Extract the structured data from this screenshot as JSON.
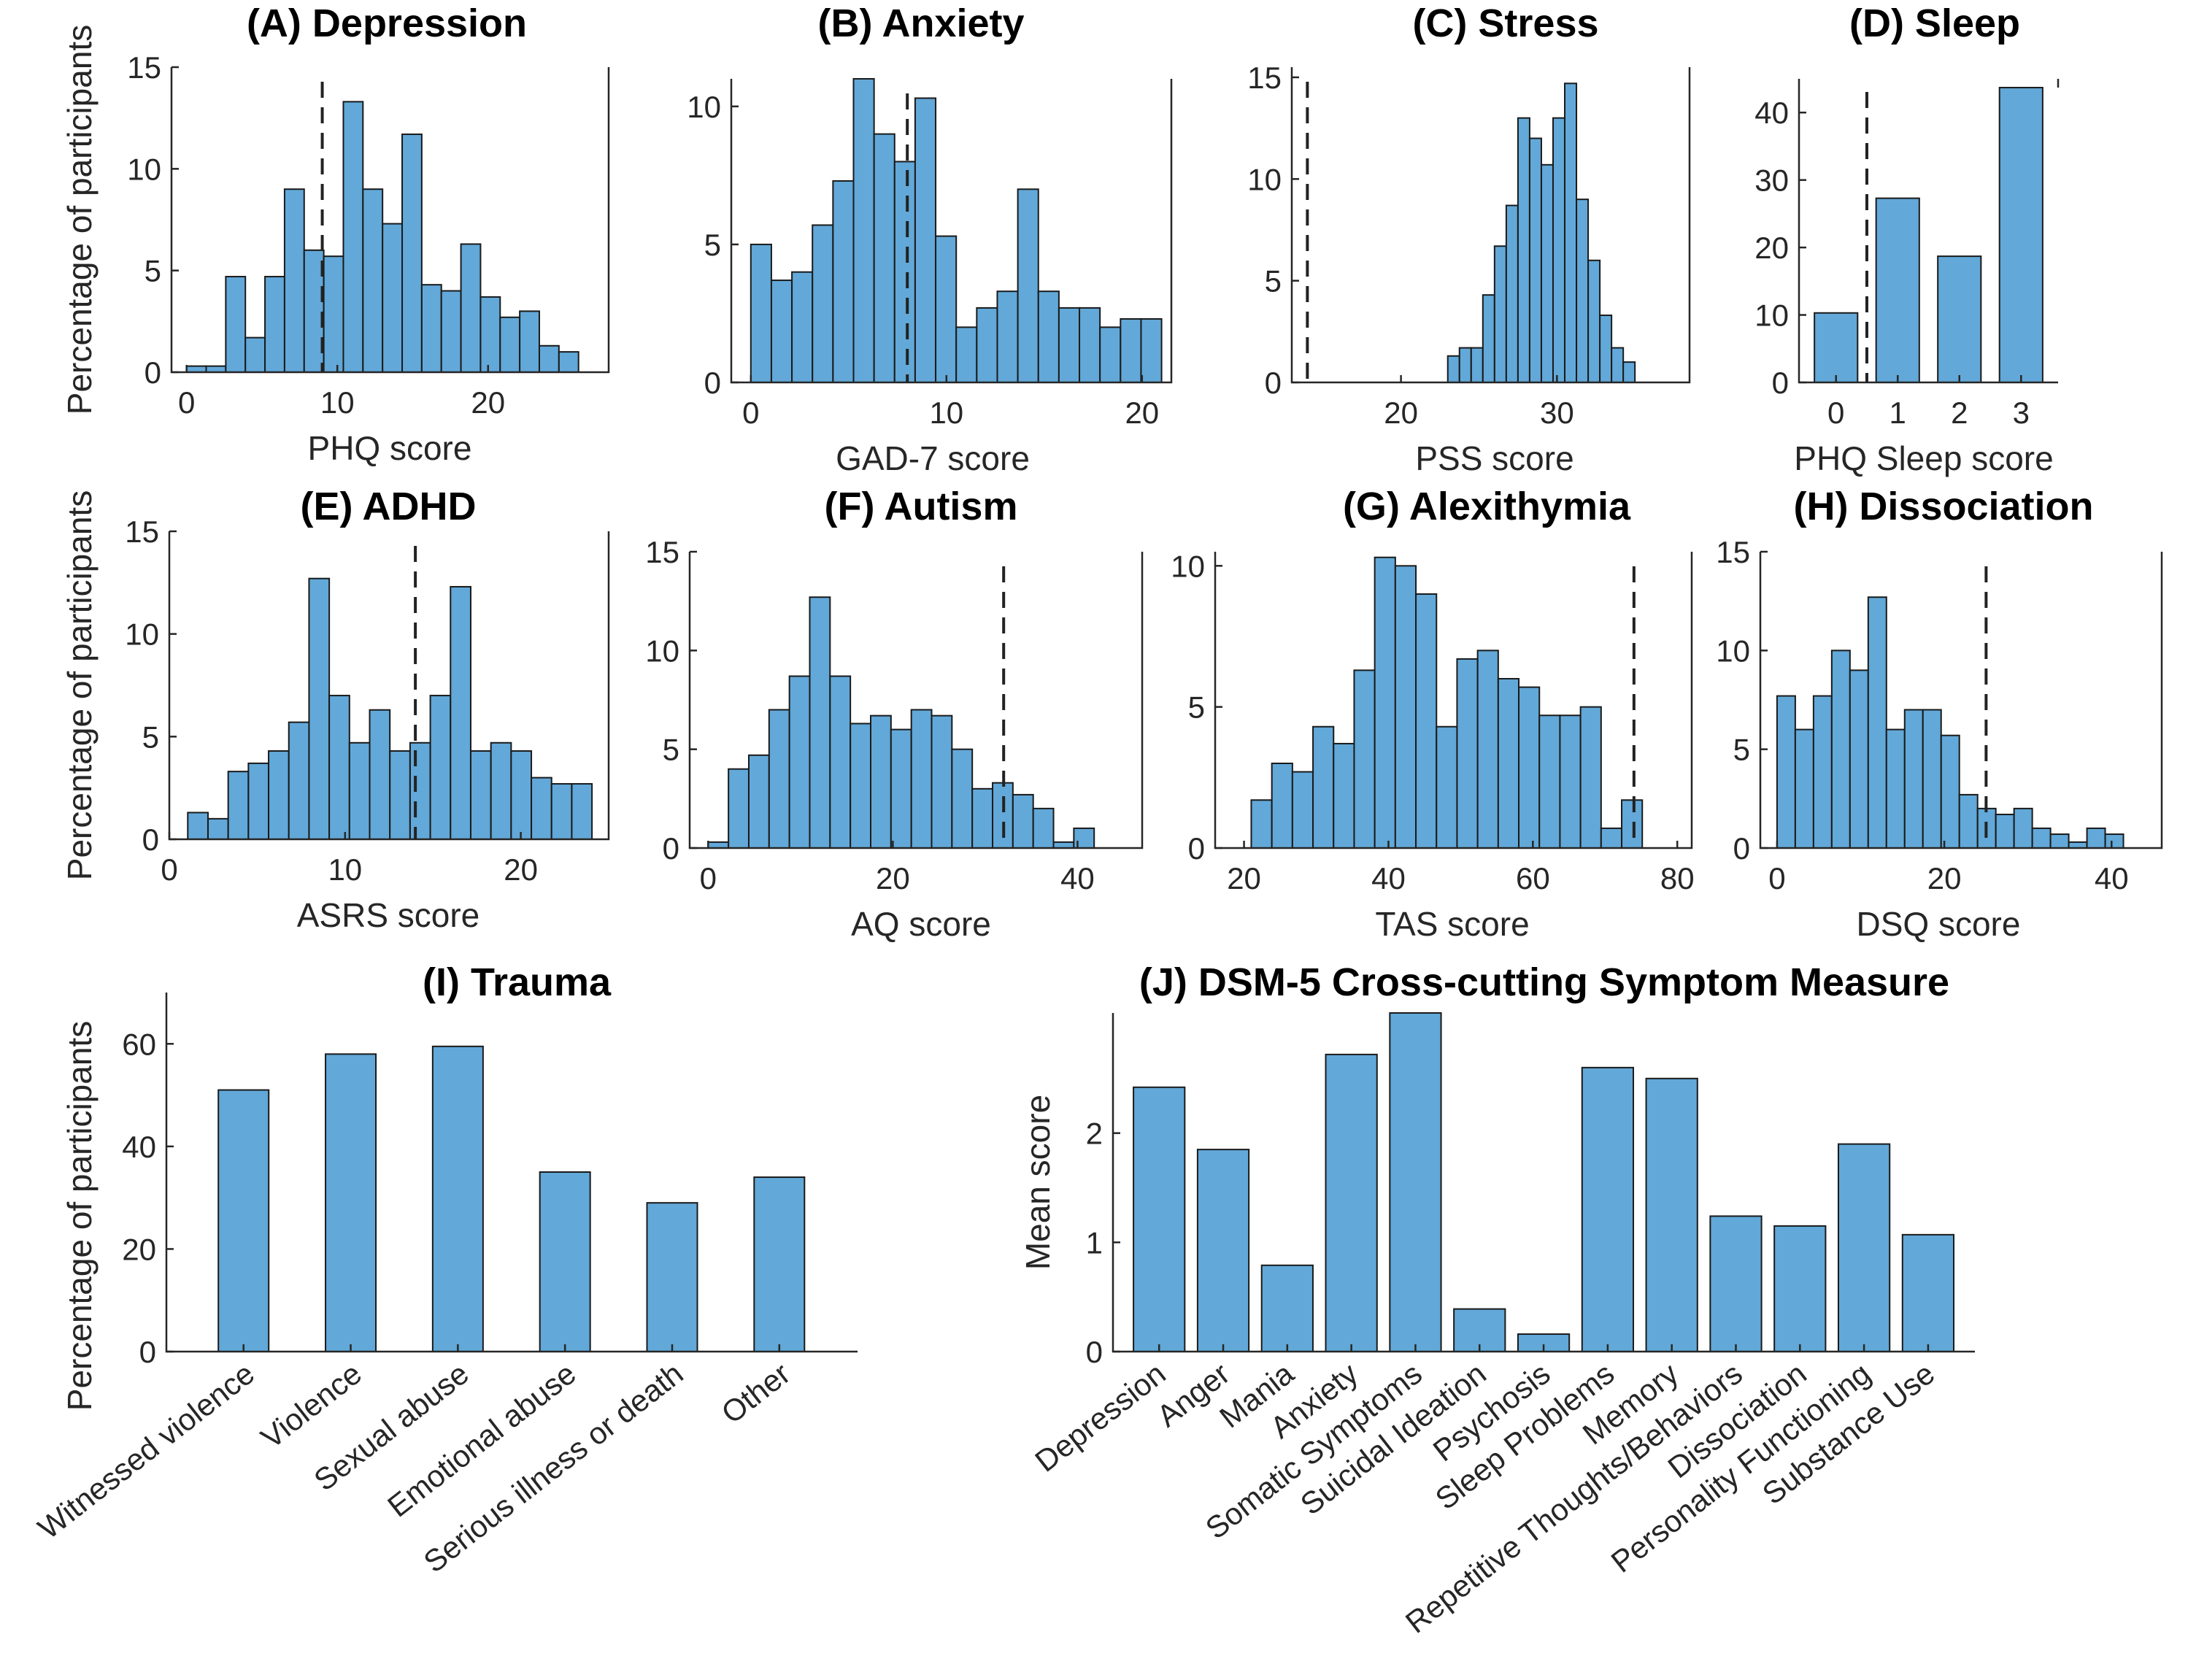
{
  "chart_data": [
    {
      "id": "A",
      "type": "bar",
      "title": "(A) Depression",
      "xlabel": "PHQ score",
      "ylabel": "Percentage of participants",
      "xlim": [
        -1,
        28
      ],
      "ylim": [
        0,
        15
      ],
      "xticks": [
        0,
        10,
        20
      ],
      "yticks": [
        0,
        5,
        10,
        15
      ],
      "bin_start": 0,
      "bin_width": 1.3,
      "values": [
        0.3,
        0.3,
        4.7,
        1.7,
        4.7,
        9.0,
        6.0,
        5.7,
        13.3,
        9.0,
        7.3,
        11.7,
        4.3,
        4.0,
        6.3,
        3.7,
        2.7,
        3.0,
        1.3,
        1.0
      ],
      "reference_line": 9
    },
    {
      "id": "B",
      "type": "bar",
      "title": "(B) Anxiety",
      "xlabel": "GAD-7 score",
      "ylabel": "",
      "xlim": [
        -1,
        21.5
      ],
      "ylim": [
        0,
        11
      ],
      "xticks": [
        0,
        10,
        20
      ],
      "yticks": [
        0,
        5,
        10
      ],
      "bin_start": 0,
      "bin_width": 1.05,
      "values": [
        5.0,
        3.7,
        4.0,
        5.7,
        7.3,
        11.0,
        9.0,
        8.0,
        10.3,
        5.3,
        2.0,
        2.7,
        3.3,
        7.0,
        3.3,
        2.7,
        2.7,
        2.0,
        2.3,
        2.3
      ],
      "reference_line": 8
    },
    {
      "id": "C",
      "type": "bar",
      "title": "(C) Stress",
      "xlabel": "PSS score",
      "ylabel": "",
      "xlim": [
        13,
        38.5
      ],
      "ylim": [
        0,
        15.5
      ],
      "xticks": [
        20,
        30
      ],
      "yticks": [
        0,
        5,
        10,
        15
      ],
      "bin_start": 23,
      "bin_width": 0.75,
      "values": [
        1.3,
        1.7,
        1.7,
        4.3,
        6.7,
        8.7,
        13.0,
        12.0,
        10.7,
        13.0,
        14.7,
        9.0,
        6.0,
        3.3,
        1.7,
        1.0
      ],
      "reference_line": 14
    },
    {
      "id": "D",
      "type": "bar",
      "title": "(D) Sleep",
      "xlabel": "PHQ Sleep score",
      "ylabel": "",
      "xlim": [
        -0.6,
        3.6
      ],
      "ylim": [
        0,
        45
      ],
      "xticks": [
        0,
        1,
        2,
        3
      ],
      "yticks": [
        0,
        10,
        20,
        30,
        40
      ],
      "categories": [
        "0",
        "1",
        "2",
        "3"
      ],
      "bar_width": 0.7,
      "values": [
        10.3,
        27.3,
        18.7,
        43.7
      ],
      "reference_line": 0.5
    },
    {
      "id": "E",
      "type": "bar",
      "title": "(E) ADHD",
      "xlabel": "ASRS score",
      "ylabel": "Percentage of participants",
      "xlim": [
        0,
        25
      ],
      "ylim": [
        0,
        15
      ],
      "xticks": [
        0,
        10,
        20
      ],
      "yticks": [
        0,
        5,
        10,
        15
      ],
      "bin_start": 1.05,
      "bin_width": 1.15,
      "values": [
        1.3,
        1.0,
        3.3,
        3.7,
        4.3,
        5.7,
        12.7,
        7.0,
        4.7,
        6.3,
        4.3,
        4.7,
        7.0,
        12.3,
        4.3,
        4.7,
        4.3,
        3.0,
        2.7,
        2.7
      ],
      "reference_line": 14
    },
    {
      "id": "F",
      "type": "bar",
      "title": "(F) Autism",
      "xlabel": "AQ score",
      "ylabel": "",
      "xlim": [
        -2,
        47
      ],
      "ylim": [
        0,
        15
      ],
      "xticks": [
        0,
        20,
        40
      ],
      "yticks": [
        0,
        5,
        10,
        15
      ],
      "bin_start": 0,
      "bin_width": 2.2,
      "values": [
        0.3,
        4.0,
        4.7,
        7.0,
        8.7,
        12.7,
        8.7,
        6.3,
        6.7,
        6.0,
        7.0,
        6.7,
        5.0,
        3.0,
        3.3,
        2.7,
        2.0,
        0.3,
        1.0
      ],
      "reference_line": 32
    },
    {
      "id": "G",
      "type": "bar",
      "title": "(G) Alexithymia",
      "xlabel": "TAS score",
      "ylabel": "",
      "xlim": [
        16,
        82
      ],
      "ylim": [
        0,
        10.5
      ],
      "xticks": [
        20,
        40,
        60,
        80
      ],
      "yticks": [
        0,
        5,
        10
      ],
      "bin_start": 21,
      "bin_width": 2.85,
      "values": [
        1.7,
        3.0,
        2.7,
        4.3,
        3.7,
        6.3,
        10.3,
        10.0,
        9.0,
        4.3,
        6.7,
        7.0,
        6.0,
        5.7,
        4.7,
        4.7,
        5.0,
        0.7,
        1.7
      ],
      "reference_line": 74
    },
    {
      "id": "H",
      "type": "bar",
      "title": "(H) Dissociation",
      "xlabel": "DSQ score",
      "ylabel": "",
      "xlim": [
        -2,
        46
      ],
      "ylim": [
        0,
        15
      ],
      "xticks": [
        0,
        20,
        40
      ],
      "yticks": [
        0,
        5,
        10,
        15
      ],
      "bin_start": 0,
      "bin_width": 2.18,
      "values": [
        7.7,
        6.0,
        7.7,
        10.0,
        9.0,
        12.7,
        6.0,
        7.0,
        7.0,
        5.7,
        2.7,
        2.0,
        1.7,
        2.0,
        1.0,
        0.7,
        0.3,
        1.0,
        0.7
      ],
      "reference_line": 25
    },
    {
      "id": "I",
      "type": "bar",
      "title": "(I) Trauma",
      "xlabel": "",
      "ylabel": "Percentage of participants",
      "ylim": [
        0,
        70
      ],
      "yticks": [
        0,
        20,
        40,
        60
      ],
      "categories": [
        "Witnessed violence",
        "Violence",
        "Sexual abuse",
        "Emotional abuse",
        "Serious illness or death",
        "Other"
      ],
      "values": [
        51,
        58,
        59.5,
        35,
        29,
        34
      ]
    },
    {
      "id": "J",
      "type": "bar",
      "title": "(J) DSM-5 Cross-cutting Symptom Measure",
      "xlabel": "",
      "ylabel": "Mean score",
      "ylim": [
        0,
        3.1
      ],
      "yticks": [
        0,
        1,
        2
      ],
      "categories": [
        "Depression",
        "Anger",
        "Mania",
        "Anxiety",
        "Somatic Symptoms",
        "Suicidal Ideation",
        "Psychosis",
        "Sleep Problems",
        "Memory",
        "Repetitive Thoughts/Behaviors",
        "Dissociation",
        "Personality Functioning",
        "Substance Use"
      ],
      "values": [
        2.42,
        1.85,
        0.79,
        2.72,
        3.1,
        0.39,
        0.16,
        2.6,
        2.5,
        1.24,
        1.15,
        1.9,
        1.07
      ]
    }
  ]
}
